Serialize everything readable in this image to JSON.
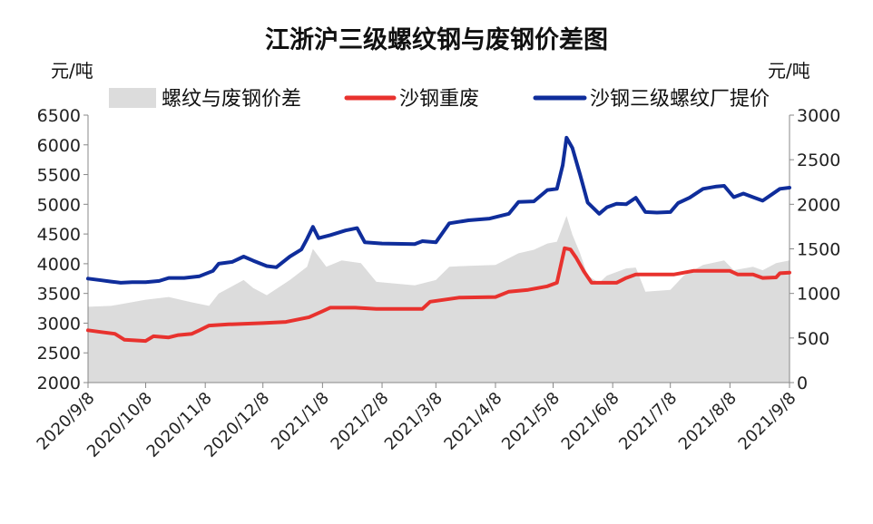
{
  "chart_data": {
    "type": "area+line",
    "title": "江浙沪三级螺纹钢与废钢价差图",
    "left_unit": "元/吨",
    "right_unit": "元/吨",
    "legend": {
      "placement": "top",
      "entries": [
        {
          "name": "螺纹与废钢价差",
          "color": "#dcdcdc",
          "kind": "area"
        },
        {
          "name": "沙钢重废",
          "color": "#e8322e",
          "kind": "line"
        },
        {
          "name": "沙钢三级螺纹厂提价",
          "color": "#0f2d9b",
          "kind": "line"
        }
      ]
    },
    "left_axis": {
      "min": 2000,
      "max": 6500,
      "ticks": [
        2000,
        2500,
        3000,
        3500,
        4000,
        4500,
        5000,
        5500,
        6000,
        6500
      ]
    },
    "right_axis": {
      "min": 0,
      "max": 3000,
      "ticks": [
        0,
        500,
        1000,
        1500,
        2000,
        2500,
        3000
      ]
    },
    "x_ticks": [
      "2020/9/8",
      "2020/10/8",
      "2020/11/8",
      "2020/12/8",
      "2021/1/8",
      "2021/2/8",
      "2021/3/8",
      "2021/4/8",
      "2021/5/8",
      "2021/6/8",
      "2021/7/8",
      "2021/8/8",
      "2021/9/8"
    ],
    "x_range": [
      "2020/9/8",
      "2021/9/8"
    ],
    "series": [
      {
        "name": "沙钢三级螺纹厂提价",
        "axis": "left",
        "points": [
          [
            "2020/9/8",
            3750
          ],
          [
            "2020/9/15",
            3720
          ],
          [
            "2020/9/20",
            3700
          ],
          [
            "2020/9/25",
            3680
          ],
          [
            "2020/10/1",
            3690
          ],
          [
            "2020/10/8",
            3690
          ],
          [
            "2020/10/15",
            3710
          ],
          [
            "2020/10/20",
            3760
          ],
          [
            "2020/10/28",
            3760
          ],
          [
            "2020/11/5",
            3790
          ],
          [
            "2020/11/12",
            3880
          ],
          [
            "2020/11/15",
            4000
          ],
          [
            "2020/11/22",
            4030
          ],
          [
            "2020/11/28",
            4120
          ],
          [
            "2020/12/3",
            4050
          ],
          [
            "2020/12/10",
            3960
          ],
          [
            "2020/12/15",
            3940
          ],
          [
            "2020/12/22",
            4120
          ],
          [
            "2020/12/28",
            4240
          ],
          [
            "2020/12/31",
            4420
          ],
          [
            "2021/1/3",
            4620
          ],
          [
            "2021/1/6",
            4430
          ],
          [
            "2021/1/12",
            4480
          ],
          [
            "2021/1/20",
            4560
          ],
          [
            "2021/1/26",
            4600
          ],
          [
            "2021/1/30",
            4360
          ],
          [
            "2021/2/8",
            4340
          ],
          [
            "2021/2/25",
            4330
          ],
          [
            "2021/3/1",
            4380
          ],
          [
            "2021/3/8",
            4360
          ],
          [
            "2021/3/15",
            4680
          ],
          [
            "2021/3/25",
            4730
          ],
          [
            "2021/4/5",
            4760
          ],
          [
            "2021/4/15",
            4840
          ],
          [
            "2021/4/20",
            5040
          ],
          [
            "2021/4/28",
            5050
          ],
          [
            "2021/5/5",
            5240
          ],
          [
            "2021/5/10",
            5260
          ],
          [
            "2021/5/13",
            5660
          ],
          [
            "2021/5/15",
            6120
          ],
          [
            "2021/5/18",
            5950
          ],
          [
            "2021/5/22",
            5500
          ],
          [
            "2021/5/26",
            5030
          ],
          [
            "2021/6/1",
            4840
          ],
          [
            "2021/6/5",
            4950
          ],
          [
            "2021/6/10",
            5010
          ],
          [
            "2021/6/15",
            5000
          ],
          [
            "2021/6/20",
            5110
          ],
          [
            "2021/6/25",
            4870
          ],
          [
            "2021/7/1",
            4860
          ],
          [
            "2021/7/8",
            4870
          ],
          [
            "2021/7/12",
            5020
          ],
          [
            "2021/7/18",
            5110
          ],
          [
            "2021/7/25",
            5260
          ],
          [
            "2021/8/1",
            5300
          ],
          [
            "2021/8/5",
            5310
          ],
          [
            "2021/8/10",
            5120
          ],
          [
            "2021/8/15",
            5180
          ],
          [
            "2021/8/20",
            5120
          ],
          [
            "2021/8/25",
            5060
          ],
          [
            "2021/8/30",
            5170
          ],
          [
            "2021/9/3",
            5260
          ],
          [
            "2021/9/8",
            5280
          ]
        ]
      },
      {
        "name": "沙钢重废",
        "axis": "left",
        "points": [
          [
            "2020/9/8",
            2880
          ],
          [
            "2020/9/15",
            2850
          ],
          [
            "2020/9/22",
            2820
          ],
          [
            "2020/9/27",
            2720
          ],
          [
            "2020/10/8",
            2700
          ],
          [
            "2020/10/12",
            2780
          ],
          [
            "2020/10/20",
            2760
          ],
          [
            "2020/10/25",
            2800
          ],
          [
            "2020/11/1",
            2820
          ],
          [
            "2020/11/5",
            2880
          ],
          [
            "2020/11/10",
            2960
          ],
          [
            "2020/11/20",
            2980
          ],
          [
            "2020/12/8",
            3000
          ],
          [
            "2020/12/20",
            3020
          ],
          [
            "2021/1/1",
            3100
          ],
          [
            "2021/1/8",
            3200
          ],
          [
            "2021/1/12",
            3260
          ],
          [
            "2021/1/25",
            3260
          ],
          [
            "2021/2/5",
            3240
          ],
          [
            "2021/2/20",
            3240
          ],
          [
            "2021/3/1",
            3240
          ],
          [
            "2021/3/5",
            3360
          ],
          [
            "2021/3/20",
            3430
          ],
          [
            "2021/4/8",
            3440
          ],
          [
            "2021/4/15",
            3530
          ],
          [
            "2021/4/25",
            3560
          ],
          [
            "2021/5/5",
            3620
          ],
          [
            "2021/5/10",
            3680
          ],
          [
            "2021/5/14",
            4260
          ],
          [
            "2021/5/17",
            4240
          ],
          [
            "2021/5/20",
            4100
          ],
          [
            "2021/5/24",
            3870
          ],
          [
            "2021/5/28",
            3680
          ],
          [
            "2021/6/10",
            3680
          ],
          [
            "2021/6/15",
            3760
          ],
          [
            "2021/6/20",
            3820
          ],
          [
            "2021/7/10",
            3820
          ],
          [
            "2021/7/20",
            3880
          ],
          [
            "2021/8/8",
            3880
          ],
          [
            "2021/8/12",
            3820
          ],
          [
            "2021/8/20",
            3820
          ],
          [
            "2021/8/25",
            3760
          ],
          [
            "2021/9/1",
            3770
          ],
          [
            "2021/9/3",
            3840
          ],
          [
            "2021/9/8",
            3850
          ]
        ]
      },
      {
        "name": "螺纹与废钢价差",
        "axis": "right",
        "points": [
          [
            "2020/9/8",
            850
          ],
          [
            "2020/9/20",
            860
          ],
          [
            "2020/10/8",
            930
          ],
          [
            "2020/10/20",
            960
          ],
          [
            "2020/11/1",
            900
          ],
          [
            "2020/11/10",
            860
          ],
          [
            "2020/11/15",
            1000
          ],
          [
            "2020/11/22",
            1080
          ],
          [
            "2020/11/28",
            1150
          ],
          [
            "2020/12/3",
            1060
          ],
          [
            "2020/12/10",
            980
          ],
          [
            "2020/12/22",
            1150
          ],
          [
            "2020/12/31",
            1300
          ],
          [
            "2021/1/3",
            1500
          ],
          [
            "2021/1/10",
            1300
          ],
          [
            "2021/1/18",
            1370
          ],
          [
            "2021/1/28",
            1340
          ],
          [
            "2021/2/5",
            1130
          ],
          [
            "2021/2/25",
            1090
          ],
          [
            "2021/3/8",
            1150
          ],
          [
            "2021/3/15",
            1300
          ],
          [
            "2021/3/25",
            1310
          ],
          [
            "2021/4/8",
            1320
          ],
          [
            "2021/4/20",
            1450
          ],
          [
            "2021/4/28",
            1490
          ],
          [
            "2021/5/5",
            1560
          ],
          [
            "2021/5/10",
            1580
          ],
          [
            "2021/5/15",
            1870
          ],
          [
            "2021/5/18",
            1660
          ],
          [
            "2021/5/22",
            1450
          ],
          [
            "2021/5/26",
            1200
          ],
          [
            "2021/6/1",
            1120
          ],
          [
            "2021/6/5",
            1200
          ],
          [
            "2021/6/15",
            1280
          ],
          [
            "2021/6/20",
            1290
          ],
          [
            "2021/6/25",
            1020
          ],
          [
            "2021/7/8",
            1040
          ],
          [
            "2021/7/15",
            1200
          ],
          [
            "2021/7/25",
            1320
          ],
          [
            "2021/8/5",
            1370
          ],
          [
            "2021/8/10",
            1260
          ],
          [
            "2021/8/20",
            1300
          ],
          [
            "2021/8/25",
            1260
          ],
          [
            "2021/9/1",
            1340
          ],
          [
            "2021/9/8",
            1370
          ]
        ]
      }
    ]
  }
}
